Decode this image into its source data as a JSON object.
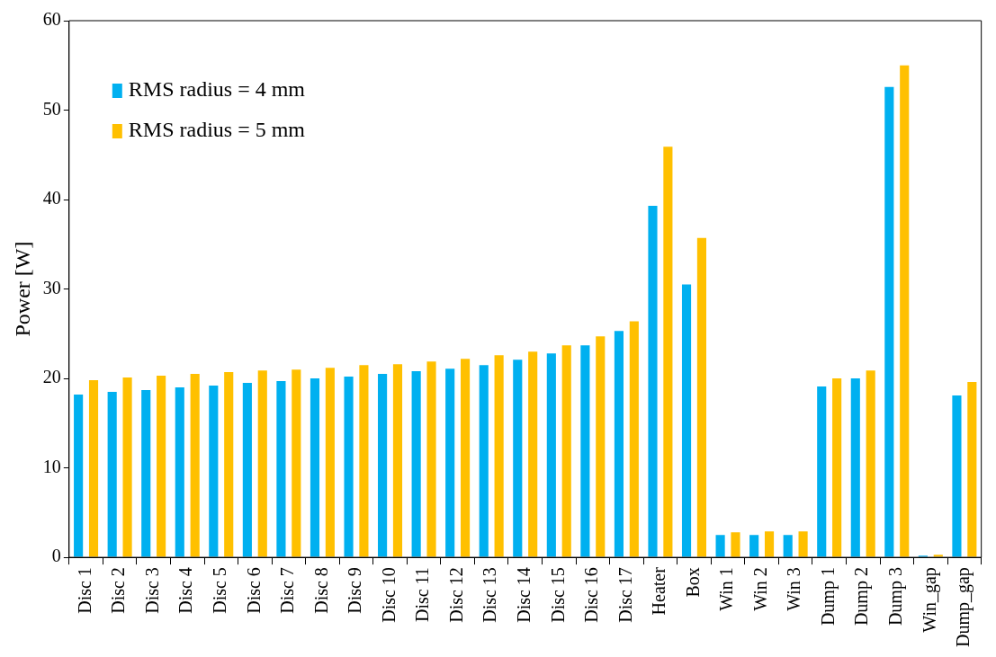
{
  "chart_data": {
    "type": "bar",
    "ylabel": "Power [W]",
    "categories": [
      "Disc 1",
      "Disc 2",
      "Disc 3",
      "Disc 4",
      "Disc 5",
      "Disc 6",
      "Disc 7",
      "Disc 8",
      "Disc 9",
      "Disc 10",
      "Disc 11",
      "Disc 12",
      "Disc 13",
      "Disc 14",
      "Disc 15",
      "Disc 16",
      "Disc 17",
      "Heater",
      "Box",
      "Win 1",
      "Win 2",
      "Win 3",
      "Dump 1",
      "Dump 2",
      "Dump 3",
      "Win_gap",
      "Dump_gap"
    ],
    "series": [
      {
        "name": "RMS radius = 4 mm",
        "color": "#00b0f0",
        "values": [
          18.2,
          18.5,
          18.7,
          19.0,
          19.2,
          19.5,
          19.7,
          20.0,
          20.2,
          20.5,
          20.8,
          21.1,
          21.5,
          22.1,
          22.8,
          23.7,
          25.3,
          39.3,
          30.5,
          2.5,
          2.5,
          2.5,
          19.1,
          20.0,
          52.6,
          0.2,
          18.1
        ]
      },
      {
        "name": "RMS radius = 5 mm",
        "color": "#ffc000",
        "values": [
          19.8,
          20.1,
          20.3,
          20.5,
          20.7,
          20.9,
          21.0,
          21.2,
          21.5,
          21.6,
          21.9,
          22.2,
          22.6,
          23.0,
          23.7,
          24.7,
          26.4,
          45.9,
          35.7,
          2.8,
          2.9,
          2.9,
          20.0,
          20.9,
          55.0,
          0.3,
          19.6
        ]
      }
    ],
    "ylim": [
      0,
      60
    ],
    "yticks": [
      0,
      10,
      20,
      30,
      40,
      50,
      60
    ],
    "grid": false,
    "legend": "top left"
  }
}
